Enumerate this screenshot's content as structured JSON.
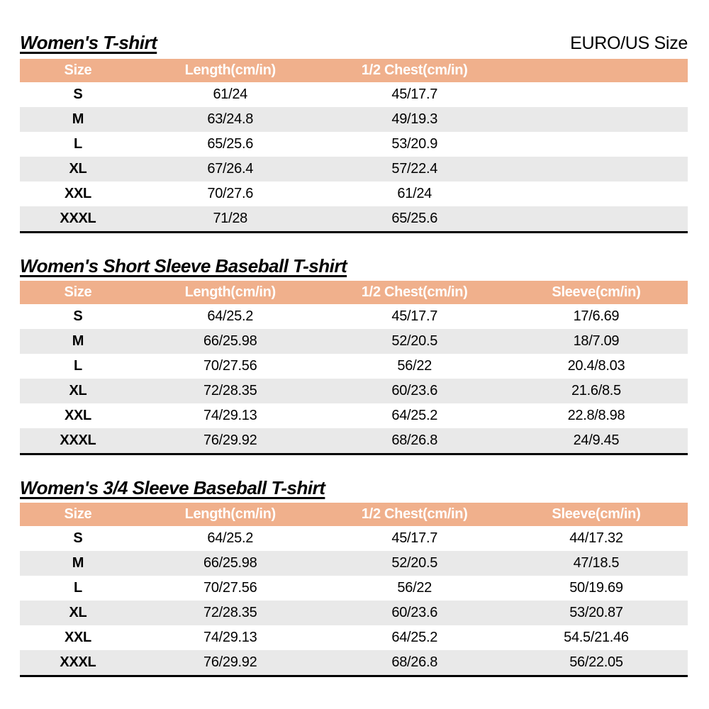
{
  "standard_label": "EURO/US Size",
  "colors": {
    "header_bg": "#F0B08C",
    "header_text": "#FFFFFF",
    "stripe_bg": "#E9E9E9",
    "table_border": "#000000",
    "page_bg": "#FFFFFF"
  },
  "tables": [
    {
      "title": "Women's T-shirt",
      "columns": [
        "Size",
        "Length(cm/in)",
        "1/2 Chest(cm/in)"
      ],
      "rows": [
        [
          "S",
          "61/24",
          "45/17.7"
        ],
        [
          "M",
          "63/24.8",
          "49/19.3"
        ],
        [
          "L",
          "65/25.6",
          "53/20.9"
        ],
        [
          "XL",
          "67/26.4",
          "57/22.4"
        ],
        [
          "XXL",
          "70/27.6",
          "61/24"
        ],
        [
          "XXXL",
          "71/28",
          "65/25.6"
        ]
      ]
    },
    {
      "title": "Women's Short Sleeve Baseball T-shirt",
      "columns": [
        "Size",
        "Length(cm/in)",
        "1/2 Chest(cm/in)",
        "Sleeve(cm/in)"
      ],
      "rows": [
        [
          "S",
          "64/25.2",
          "45/17.7",
          "17/6.69"
        ],
        [
          "M",
          "66/25.98",
          "52/20.5",
          "18/7.09"
        ],
        [
          "L",
          "70/27.56",
          "56/22",
          "20.4/8.03"
        ],
        [
          "XL",
          "72/28.35",
          "60/23.6",
          "21.6/8.5"
        ],
        [
          "XXL",
          "74/29.13",
          "64/25.2",
          "22.8/8.98"
        ],
        [
          "XXXL",
          "76/29.92",
          "68/26.8",
          "24/9.45"
        ]
      ]
    },
    {
      "title": "Women's 3/4 Sleeve Baseball T-shirt",
      "columns": [
        "Size",
        "Length(cm/in)",
        "1/2 Chest(cm/in)",
        "Sleeve(cm/in)"
      ],
      "rows": [
        [
          "S",
          "64/25.2",
          "45/17.7",
          "44/17.32"
        ],
        [
          "M",
          "66/25.98",
          "52/20.5",
          "47/18.5"
        ],
        [
          "L",
          "70/27.56",
          "56/22",
          "50/19.69"
        ],
        [
          "XL",
          "72/28.35",
          "60/23.6",
          "53/20.87"
        ],
        [
          "XXL",
          "74/29.13",
          "64/25.2",
          "54.5/21.46"
        ],
        [
          "XXXL",
          "76/29.92",
          "68/26.8",
          "56/22.05"
        ]
      ]
    }
  ]
}
